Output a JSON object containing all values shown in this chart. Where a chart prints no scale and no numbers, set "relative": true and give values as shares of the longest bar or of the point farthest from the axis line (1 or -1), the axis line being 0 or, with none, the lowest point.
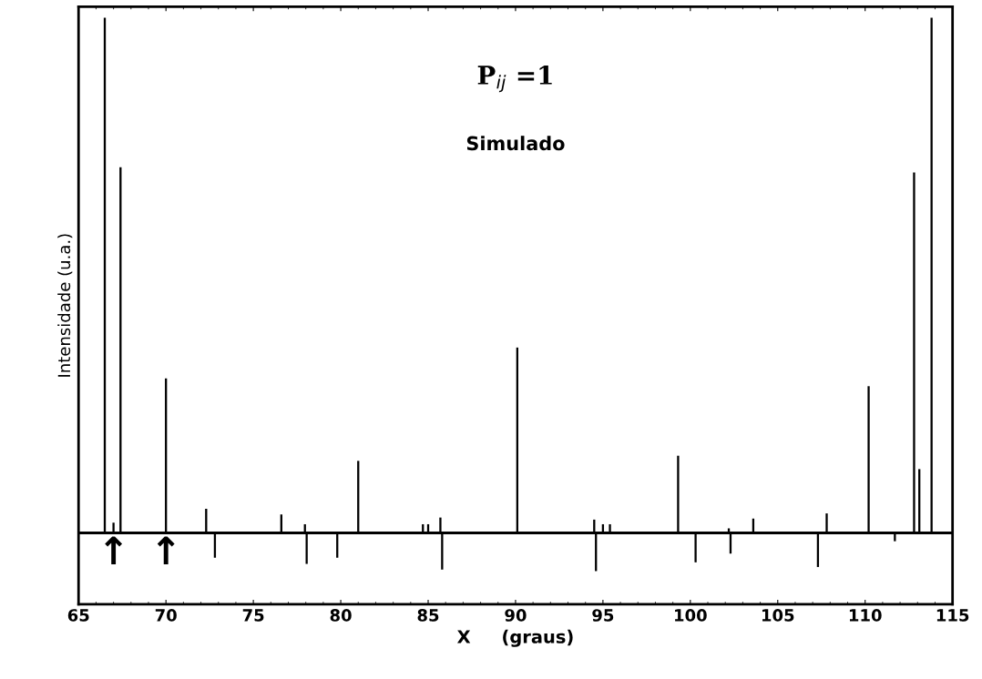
{
  "chart_data": {
    "type": "bar",
    "title": "P$_{ij}$ =1",
    "subtitle": "Simulado",
    "xlabel": "X     (graus)",
    "ylabel": "Intensidade (u.a.)",
    "relative": true,
    "xlim": [
      65,
      115
    ],
    "xticks": [
      65,
      70,
      75,
      80,
      85,
      90,
      95,
      100,
      105,
      110,
      115
    ],
    "tick_labels": "x",
    "grid": false,
    "annotations": [
      {
        "text": "↑",
        "x": 67.0,
        "y": 0
      },
      {
        "text": "↑",
        "x": 70.0,
        "y": 0
      }
    ],
    "series": [
      {
        "color": "#000000",
        "x": [
          66.5,
          67.0,
          67.4,
          70.0,
          72.3,
          72.8,
          76.6,
          77.95,
          78.05,
          79.8,
          81.0,
          84.7,
          85.0,
          85.7,
          85.8,
          90.1,
          94.5,
          94.6,
          95.0,
          95.4,
          99.3,
          100.3,
          102.2,
          102.3,
          103.6,
          107.3,
          107.8,
          110.2,
          111.7,
          112.8,
          113.1,
          113.8
        ],
        "values": [
          1.0,
          0.02,
          0.71,
          0.3,
          0.047,
          -0.048,
          0.036,
          0.017,
          -0.06,
          -0.048,
          0.14,
          0.017,
          0.017,
          0.03,
          -0.071,
          0.36,
          0.026,
          -0.074,
          0.017,
          0.017,
          0.15,
          -0.057,
          0.009,
          -0.04,
          0.028,
          -0.066,
          0.038,
          0.285,
          -0.016,
          0.7,
          0.124,
          1.0
        ]
      }
    ]
  }
}
